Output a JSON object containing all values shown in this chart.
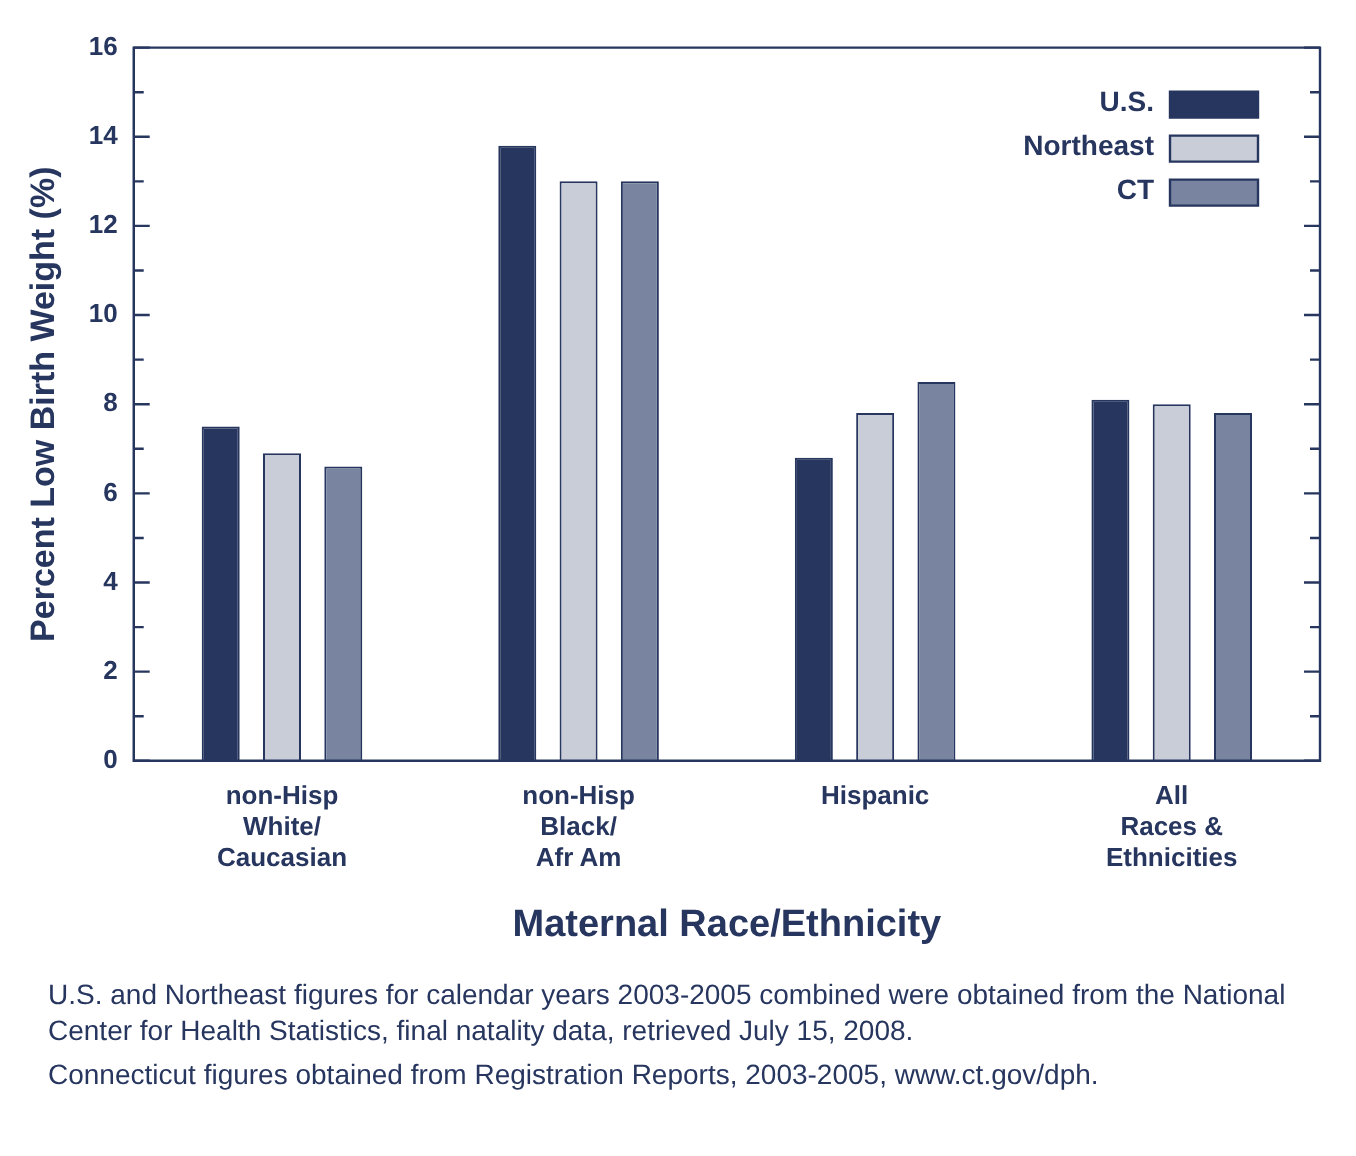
{
  "chart_data": {
    "type": "bar",
    "xlabel": "Maternal Race/Ethnicity",
    "ylabel": "Percent Low Birth Weight (%)",
    "categories": [
      "non-Hisp\nWhite/\nCaucasian",
      "non-Hisp\nBlack/\nAfr Am",
      "Hispanic",
      "All\nRaces &\nEthnicities"
    ],
    "series": [
      {
        "name": "U.S.",
        "color": "#27365f",
        "values": [
          7.5,
          13.8,
          6.8,
          8.1
        ]
      },
      {
        "name": "Northeast",
        "color": "#c9cdd8",
        "values": [
          6.9,
          13.0,
          7.8,
          8.0
        ]
      },
      {
        "name": "CT",
        "color": "#7884a0",
        "values": [
          6.6,
          13.0,
          8.5,
          7.8
        ]
      }
    ],
    "ylim": [
      0,
      16
    ],
    "yticks": [
      0,
      {
        "value": 1,
        "label": null
      },
      2,
      {
        "value": 3,
        "label": null
      },
      4,
      {
        "value": 5,
        "label": null
      },
      6,
      {
        "value": 7,
        "label": null
      },
      8,
      {
        "value": 9,
        "label": null
      },
      10,
      {
        "value": 11,
        "label": null
      },
      12,
      {
        "value": 13,
        "label": null
      },
      14,
      {
        "value": 15,
        "label": null
      },
      16
    ],
    "grid": false,
    "legend": "top right",
    "annotations": [
      "U.S. and Northeast figures for calendar years 2003-2005 combined were obtained from the National Center for Health Statistics, final natality data, retrieved July 15, 2008.",
      "Connecticut figures obtained from Registration Reports, 2003-2005, www.ct.gov/dph."
    ]
  }
}
